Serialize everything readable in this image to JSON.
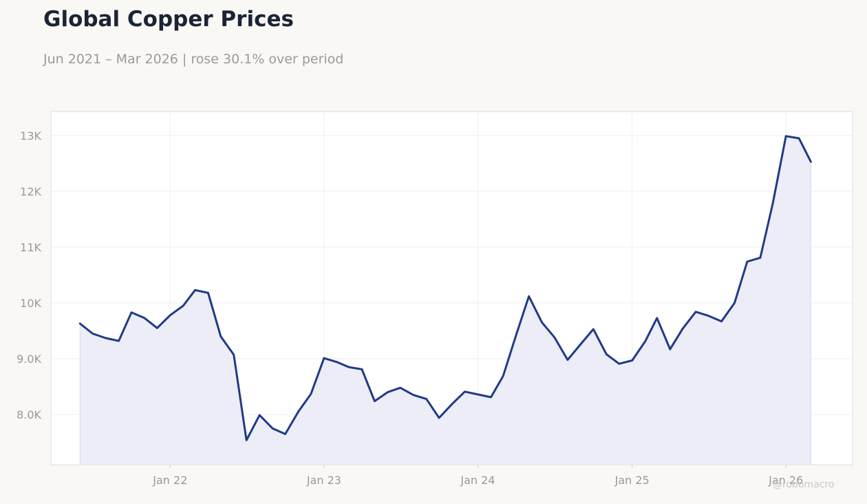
{
  "header": {
    "title": "Global Copper Prices",
    "subtitle": "Jun 2021 – Mar 2026 | rose 30.1% over period"
  },
  "watermark": "@robomacro",
  "colors": {
    "line": "#1f3a87",
    "fill": "#e9eaf4",
    "grid": "#efefef",
    "axis_text": "#999999",
    "plot_bg": "#ffffff",
    "plot_border": "#dddddd"
  },
  "chart_data": {
    "type": "area",
    "title": "Global Copper Prices",
    "xlabel": "",
    "ylabel": "",
    "x_start": "2021-06",
    "x_end": "2026-03",
    "ylim": [
      7100,
      13430
    ],
    "xlim": [
      "2021-03-24",
      "2026-06-08"
    ],
    "x_ticks": [
      {
        "date": "2022-01",
        "label": "Jan 22"
      },
      {
        "date": "2023-01",
        "label": "Jan 23"
      },
      {
        "date": "2024-01",
        "label": "Jan 24"
      },
      {
        "date": "2025-01",
        "label": "Jan 25"
      },
      {
        "date": "2026-01",
        "label": "Jan 26"
      }
    ],
    "y_ticks": [
      {
        "value": 8000,
        "label": "8.0K"
      },
      {
        "value": 9000,
        "label": "9.0K"
      },
      {
        "value": 10000,
        "label": "10K"
      },
      {
        "value": 11000,
        "label": "11K"
      },
      {
        "value": 12000,
        "label": "12K"
      },
      {
        "value": 13000,
        "label": "13K"
      }
    ],
    "grid": true,
    "legend": "none",
    "series": [
      {
        "x": [
          "2021-06",
          "2021-07",
          "2021-08",
          "2021-09",
          "2021-10",
          "2021-11",
          "2021-12",
          "2022-01",
          "2022-02",
          "2022-03",
          "2022-04",
          "2022-05",
          "2022-06",
          "2022-07",
          "2022-08",
          "2022-09",
          "2022-10",
          "2022-11",
          "2022-12",
          "2023-01",
          "2023-02",
          "2023-03",
          "2023-04",
          "2023-05",
          "2023-06",
          "2023-07",
          "2023-08",
          "2023-09",
          "2023-10",
          "2023-11",
          "2023-12",
          "2024-01",
          "2024-02",
          "2024-03",
          "2024-04",
          "2024-05",
          "2024-06",
          "2024-07",
          "2024-08",
          "2024-09",
          "2024-10",
          "2024-11",
          "2024-12",
          "2025-01",
          "2025-02",
          "2025-03",
          "2025-04",
          "2025-05",
          "2025-06",
          "2025-07",
          "2025-08",
          "2025-09",
          "2025-10",
          "2025-11",
          "2025-12",
          "2026-01",
          "2026-02",
          "2026-03"
        ],
        "values": [
          9630,
          9450,
          9370,
          9320,
          9830,
          9730,
          9550,
          9780,
          9950,
          10230,
          10180,
          9400,
          9070,
          7540,
          7990,
          7750,
          7650,
          8050,
          8370,
          9010,
          8940,
          8850,
          8810,
          8240,
          8400,
          8480,
          8350,
          8280,
          7940,
          8190,
          8410,
          8360,
          8310,
          8690,
          9430,
          10120,
          9650,
          9380,
          8980,
          9260,
          9530,
          9080,
          8910,
          8970,
          9310,
          9730,
          9170,
          9540,
          9840,
          9770,
          9670,
          10000,
          10740,
          10810,
          11790,
          12990,
          12950,
          12530
        ]
      }
    ]
  }
}
